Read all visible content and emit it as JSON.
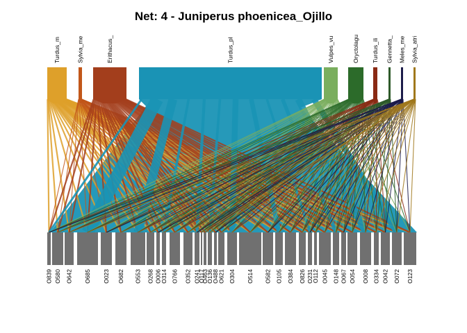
{
  "title": "Net: 4 - Juniperus phoenicea_Ojillo",
  "colors": {
    "background": "#ffffff",
    "lower_box": "#707070",
    "separator": "#ffffff"
  },
  "chart_data": {
    "type": "bipartite",
    "title": "Net: 4 - Juniperus phoenicea_Ojillo",
    "higher": [
      {
        "label": "Turdus_m",
        "color": "#DEA02A"
      },
      {
        "label": "Sylvia_me",
        "color": "#C2571A"
      },
      {
        "label": "Erithacus_",
        "color": "#A33E1C"
      },
      {
        "label": "Turdus_pl",
        "color": "#1A93B5"
      },
      {
        "label": "Vulpes_vu",
        "color": "#7AAE5E"
      },
      {
        "label": "Oryctolagu",
        "color": "#2C6B2A"
      },
      {
        "label": "Turdus_ili",
        "color": "#8A2A14"
      },
      {
        "label": "Gennetta_",
        "color": "#2E5A2A"
      },
      {
        "label": "Meles_me",
        "color": "#1B1B4A"
      },
      {
        "label": "Sylvia_atri",
        "color": "#A0781C"
      }
    ],
    "lower": [
      "O839",
      "O580",
      "O642",
      "O685",
      "O023",
      "O682",
      "O553",
      "O268",
      "O006",
      "O314",
      "O766",
      "O352",
      "O241",
      "O117",
      "O463",
      "O136",
      "O488",
      "O621",
      "O304",
      "O514",
      "O582",
      "O105",
      "O384",
      "O826",
      "O231",
      "O112",
      "O045",
      "O148",
      "O067",
      "O054",
      "O008",
      "O334",
      "O042",
      "O072",
      "O123"
    ]
  }
}
